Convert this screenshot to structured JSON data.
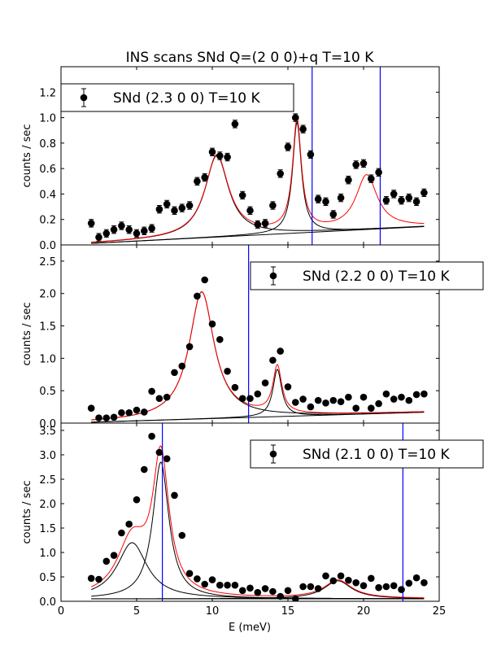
{
  "figure_title": "INS scans SNd Q=(2 0 0)+q T=10 K",
  "chart_data": [
    {
      "type": "scatter",
      "legend": "SNd (2.3 0 0) T=10 K",
      "legend_position": "top-left",
      "ylabel": "counts / sec",
      "xlim": [
        0,
        25
      ],
      "ylim": [
        0,
        1.4
      ],
      "yticks": [
        "0.0",
        "0.2",
        "0.4",
        "0.6",
        "0.8",
        "1.0",
        "1.2"
      ],
      "yticks_values": [
        0,
        0.2,
        0.4,
        0.6,
        0.8,
        1.0,
        1.2
      ],
      "x": [
        2,
        2.5,
        3,
        3.5,
        4,
        4.5,
        5,
        5.5,
        6,
        6.5,
        7,
        7.5,
        8,
        8.5,
        9,
        9.5,
        10,
        10.5,
        11,
        11.5,
        12,
        12.5,
        13,
        13.5,
        14,
        14.5,
        15,
        15.5,
        16,
        16.5,
        17,
        17.5,
        18,
        18.5,
        19,
        19.5,
        20,
        20.5,
        21,
        21.5,
        22,
        22.5,
        23,
        23.5,
        24
      ],
      "y": [
        0.17,
        0.06,
        0.09,
        0.12,
        0.15,
        0.12,
        0.09,
        0.11,
        0.13,
        0.28,
        0.32,
        0.27,
        0.29,
        0.31,
        0.5,
        0.53,
        0.73,
        0.7,
        0.69,
        0.95,
        0.39,
        0.27,
        0.16,
        0.17,
        0.31,
        0.56,
        0.77,
        1.0,
        0.91,
        0.71,
        0.36,
        0.34,
        0.24,
        0.37,
        0.51,
        0.63,
        0.64,
        0.52,
        0.57,
        0.35,
        0.4,
        0.35,
        0.37,
        0.34,
        0.41
      ],
      "yerr": 0.03,
      "background": [
        0.0,
        0.006
      ],
      "peaks": [
        [
          10.3,
          0.64,
          0.95
        ],
        [
          15.6,
          0.87,
          0.35
        ],
        [
          20.2,
          0.42,
          0.85
        ]
      ],
      "component_peaks": [
        [
          10.3,
          0.64,
          0.95
        ],
        [
          15.6,
          0.87,
          0.35
        ]
      ],
      "vlines": [
        16.6,
        21.1
      ]
    },
    {
      "type": "scatter",
      "legend": "SNd (2.2 0 0) T=10 K",
      "legend_position": "top-right",
      "ylabel": "counts / sec",
      "xlim": [
        0,
        25
      ],
      "ylim": [
        0,
        2.75
      ],
      "yticks": [
        "0.0",
        "0.5",
        "1.0",
        "1.5",
        "2.0",
        "2.5"
      ],
      "yticks_values": [
        0,
        0.5,
        1.0,
        1.5,
        2.0,
        2.5
      ],
      "x": [
        2,
        2.5,
        3,
        3.5,
        4,
        4.5,
        5,
        5.5,
        6,
        6.5,
        7,
        7.5,
        8,
        8.5,
        9,
        9.5,
        10,
        10.5,
        11,
        11.5,
        12,
        12.5,
        13,
        13.5,
        14,
        14.5,
        15,
        15.5,
        16,
        16.5,
        17,
        17.5,
        18,
        18.5,
        19,
        19.5,
        20,
        20.5,
        21,
        21.5,
        22,
        22.5,
        23,
        23.5,
        24
      ],
      "y": [
        0.23,
        0.08,
        0.08,
        0.09,
        0.16,
        0.16,
        0.2,
        0.17,
        0.49,
        0.38,
        0.4,
        0.78,
        0.88,
        1.18,
        1.96,
        2.21,
        1.53,
        1.29,
        0.8,
        0.55,
        0.38,
        0.38,
        0.45,
        0.62,
        0.97,
        1.11,
        0.56,
        0.32,
        0.37,
        0.25,
        0.35,
        0.31,
        0.35,
        0.33,
        0.4,
        0.23,
        0.4,
        0.23,
        0.3,
        0.45,
        0.37,
        0.4,
        0.35,
        0.44,
        0.45
      ],
      "yerr": 0.03,
      "background": [
        0.0,
        0.007
      ],
      "peaks": [
        [
          9.3,
          1.96,
          1.0
        ],
        [
          14.3,
          0.73,
          0.35
        ]
      ],
      "component_peaks": [
        [
          9.3,
          1.96,
          1.0
        ],
        [
          14.3,
          0.73,
          0.35
        ]
      ],
      "vlines": [
        12.4
      ]
    },
    {
      "type": "scatter",
      "legend": "SNd (2.1 0 0) T=10 K",
      "legend_position": "top-right",
      "ylabel": "counts / sec",
      "xlabel": "E (meV)",
      "xlim": [
        0,
        25
      ],
      "ylim": [
        0,
        3.65
      ],
      "xticks": [
        "0",
        "5",
        "10",
        "15",
        "20",
        "25"
      ],
      "xticks_values": [
        0,
        5,
        10,
        15,
        20,
        25
      ],
      "yticks": [
        "0.0",
        "0.5",
        "1.0",
        "1.5",
        "2.0",
        "2.5",
        "3.0",
        "3.5"
      ],
      "yticks_values": [
        0,
        0.5,
        1.0,
        1.5,
        2.0,
        2.5,
        3.0,
        3.5
      ],
      "x": [
        2,
        2.5,
        3,
        3.5,
        4,
        4.5,
        5,
        5.5,
        6,
        6.5,
        7,
        7.5,
        8,
        8.5,
        9,
        9.5,
        10,
        10.5,
        11,
        11.5,
        12,
        12.5,
        13,
        13.5,
        14,
        14.5,
        15,
        15.5,
        16,
        16.5,
        17,
        17.5,
        18,
        18.5,
        19,
        19.5,
        20,
        20.5,
        21,
        21.5,
        22,
        22.5,
        23,
        23.5,
        24
      ],
      "y": [
        0.47,
        0.45,
        0.82,
        0.94,
        1.4,
        1.58,
        2.08,
        2.7,
        3.38,
        3.05,
        2.92,
        2.17,
        1.35,
        0.57,
        0.46,
        0.35,
        0.44,
        0.33,
        0.33,
        0.33,
        0.22,
        0.27,
        0.18,
        0.26,
        0.2,
        0.1,
        0.22,
        0.05,
        0.3,
        0.3,
        0.26,
        0.52,
        0.42,
        0.52,
        0.43,
        0.38,
        0.32,
        0.47,
        0.28,
        0.3,
        0.32,
        0.24,
        0.37,
        0.48,
        0.38
      ],
      "yerr": 0.03,
      "background": [
        0.05,
        0.0
      ],
      "peaks": [
        [
          4.7,
          1.15,
          1.2
        ],
        [
          6.6,
          2.8,
          0.65
        ],
        [
          18.3,
          0.37,
          1.1
        ]
      ],
      "component_peaks": [
        [
          4.7,
          1.15,
          1.2
        ],
        [
          6.6,
          2.8,
          0.65
        ],
        [
          18.3,
          0.37,
          1.1
        ]
      ],
      "vlines": [
        6.7,
        22.6
      ]
    }
  ]
}
